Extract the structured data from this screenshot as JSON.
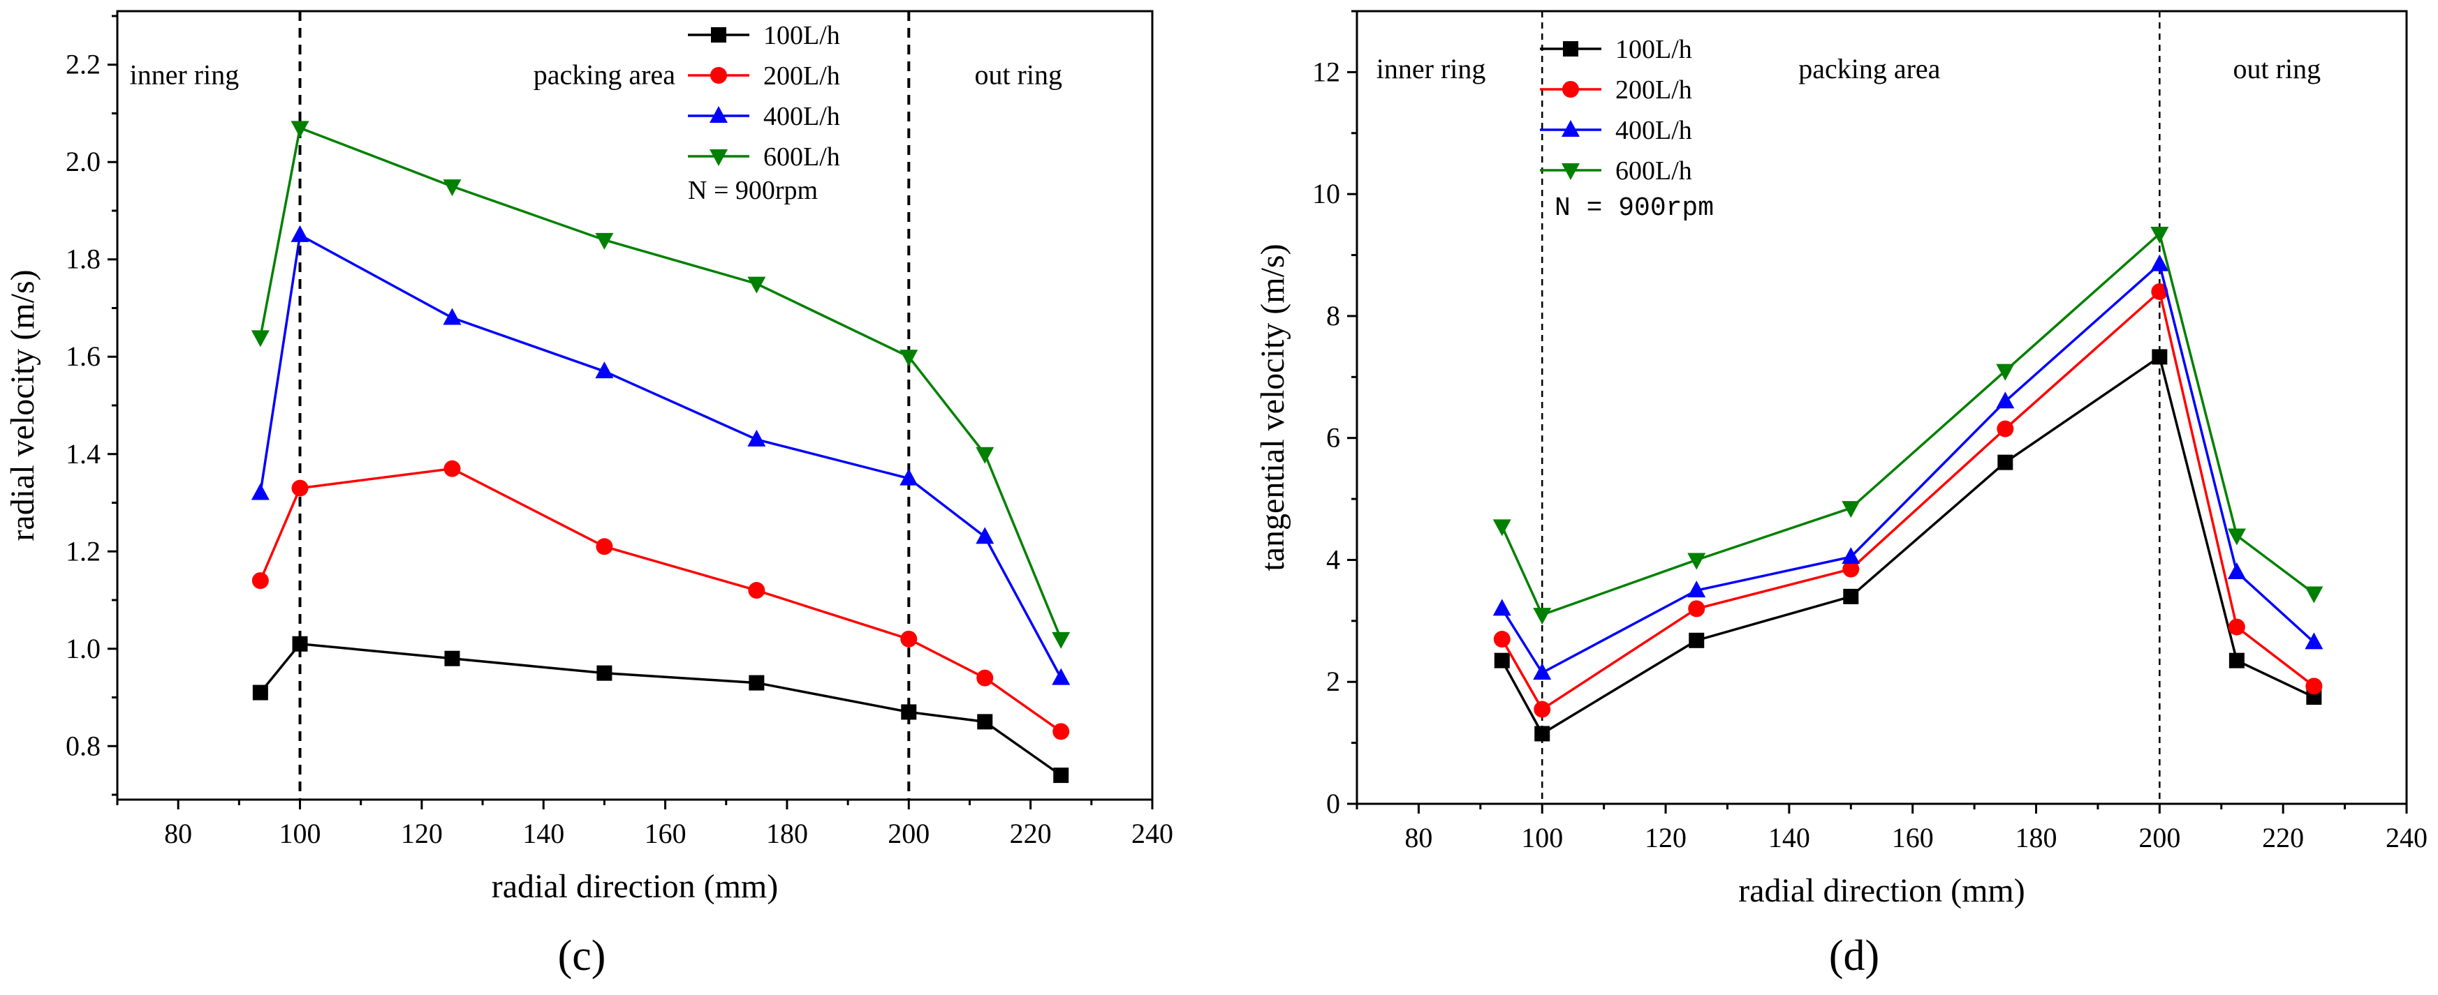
{
  "figure": {
    "panels": [
      "c",
      "d"
    ]
  },
  "chart_data": [
    {
      "panel_label": "(c)",
      "type": "line",
      "xlabel": "radial direction  (mm)",
      "ylabel": "radial velocity (m/s)",
      "xlim": [
        70,
        240
      ],
      "ylim": [
        0.69,
        2.31
      ],
      "xticks": [
        80,
        100,
        120,
        140,
        160,
        180,
        200,
        220,
        240
      ],
      "yticks": [
        0.8,
        1.0,
        1.2,
        1.4,
        1.6,
        1.8,
        2.0,
        2.2
      ],
      "xtick_labels": [
        "80",
        "100",
        "120",
        "140",
        "160",
        "180",
        "200",
        "220",
        "240"
      ],
      "ytick_labels": [
        "0.8",
        "1.0",
        "1.2",
        "1.4",
        "1.6",
        "1.8",
        "2.0",
        "2.2"
      ],
      "vlines": [
        100,
        200
      ],
      "regions": [
        {
          "label": "inner ring",
          "x": 81,
          "y": 2.16
        },
        {
          "label": "packing area",
          "x": 150,
          "y": 2.16
        },
        {
          "label": "out ring",
          "x": 218,
          "y": 2.16
        }
      ],
      "legend_note": "N = 900rpm",
      "x": [
        93.5,
        100,
        125,
        150,
        175,
        200,
        212.5,
        225
      ],
      "series": [
        {
          "name": "100L/h",
          "color": "#000000",
          "marker": "square",
          "values": [
            0.91,
            1.01,
            0.98,
            0.95,
            0.93,
            0.87,
            0.85,
            0.74
          ]
        },
        {
          "name": "200L/h",
          "color": "#ff0000",
          "marker": "circle",
          "values": [
            1.14,
            1.33,
            1.37,
            1.21,
            1.12,
            1.02,
            0.94,
            0.83
          ]
        },
        {
          "name": "400L/h",
          "color": "#0000ff",
          "marker": "triangle-up",
          "values": [
            1.32,
            1.85,
            1.68,
            1.57,
            1.43,
            1.35,
            1.23,
            0.94
          ]
        },
        {
          "name": "600L/h",
          "color": "#008000",
          "marker": "triangle-down",
          "values": [
            1.64,
            2.07,
            1.95,
            1.84,
            1.75,
            1.6,
            1.4,
            1.02
          ]
        }
      ]
    },
    {
      "panel_label": "(d)",
      "type": "line",
      "xlabel": "radial direction  (mm)",
      "ylabel": "tangential velocity (m/s)",
      "xlim": [
        70,
        240
      ],
      "ylim": [
        0,
        13
      ],
      "xticks": [
        80,
        100,
        120,
        140,
        160,
        180,
        200,
        220,
        240
      ],
      "yticks": [
        0,
        2,
        4,
        6,
        8,
        10,
        12
      ],
      "xtick_labels": [
        "80",
        "100",
        "120",
        "140",
        "160",
        "180",
        "200",
        "220",
        "240"
      ],
      "ytick_labels": [
        "0",
        "2",
        "4",
        "6",
        "8",
        "10",
        "12"
      ],
      "vlines": [
        100,
        200
      ],
      "regions": [
        {
          "label": "inner ring",
          "x": 82,
          "y": 11.9
        },
        {
          "label": "packing area",
          "x": 153,
          "y": 11.9
        },
        {
          "label": "out ring",
          "x": 219,
          "y": 11.9
        }
      ],
      "legend_note": "N = 900rpm",
      "x": [
        93.5,
        100,
        125,
        150,
        175,
        200,
        212.5,
        225
      ],
      "series": [
        {
          "name": "100L/h",
          "color": "#000000",
          "marker": "square",
          "values": [
            2.35,
            1.15,
            2.68,
            3.4,
            5.6,
            7.33,
            2.35,
            1.75
          ]
        },
        {
          "name": "200L/h",
          "color": "#ff0000",
          "marker": "circle",
          "values": [
            2.7,
            1.55,
            3.2,
            3.85,
            6.15,
            8.4,
            2.9,
            1.93
          ]
        },
        {
          "name": "400L/h",
          "color": "#0000ff",
          "marker": "triangle-up",
          "values": [
            3.2,
            2.15,
            3.5,
            4.05,
            6.6,
            8.85,
            3.8,
            2.65
          ]
        },
        {
          "name": "600L/h",
          "color": "#008000",
          "marker": "triangle-down",
          "values": [
            4.55,
            3.1,
            4.0,
            4.85,
            7.1,
            9.35,
            4.4,
            3.45
          ]
        }
      ]
    }
  ]
}
